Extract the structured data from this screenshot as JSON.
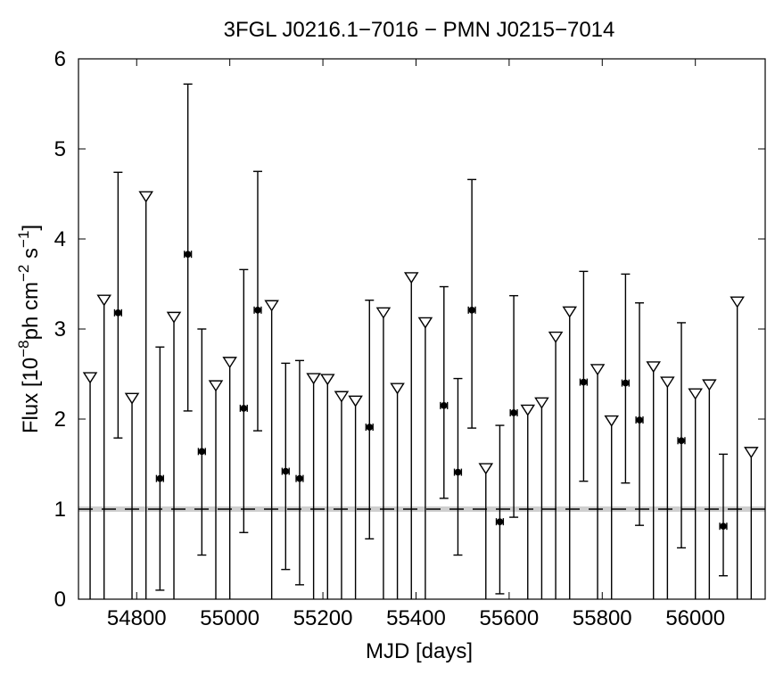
{
  "chart_data": {
    "type": "scatter",
    "title": "3FGL J0216.1−7016 − PMN J0215−7014",
    "xlabel": "MJD [days]",
    "ylabel_parts": {
      "prefix": "Flux [10",
      "exp1": "−8",
      "mid": "ph cm",
      "exp2": "−2",
      "mid2": " s",
      "exp3": "−1",
      "suffix": "]"
    },
    "xlim": [
      54675,
      56150
    ],
    "ylim": [
      0,
      6
    ],
    "xticks": [
      54800,
      55000,
      55200,
      55400,
      55600,
      55800,
      56000
    ],
    "xtick_labels": [
      "54800",
      "55000",
      "55200",
      "55400",
      "55600",
      "55800",
      "56000"
    ],
    "yticks": [
      0,
      1,
      2,
      3,
      4,
      5,
      6
    ],
    "ytick_labels": [
      "0",
      "1",
      "2",
      "3",
      "4",
      "5",
      "6"
    ],
    "grid": false,
    "bin_half_width_days": 15,
    "mean_flux": {
      "value": 1.0,
      "band": [
        0.97,
        1.03
      ]
    },
    "series": [
      {
        "kind": "detections",
        "points": [
          {
            "x": 54760,
            "y": 3.18,
            "ylo": 1.79,
            "yhi": 4.74
          },
          {
            "x": 54850,
            "y": 1.34,
            "ylo": 0.1,
            "yhi": 2.8
          },
          {
            "x": 54910,
            "y": 3.83,
            "ylo": 2.09,
            "yhi": 5.72
          },
          {
            "x": 54940,
            "y": 1.64,
            "ylo": 0.49,
            "yhi": 3.0
          },
          {
            "x": 55030,
            "y": 2.12,
            "ylo": 0.74,
            "yhi": 3.66
          },
          {
            "x": 55060,
            "y": 3.21,
            "ylo": 1.87,
            "yhi": 4.75
          },
          {
            "x": 55120,
            "y": 1.42,
            "ylo": 0.33,
            "yhi": 2.62
          },
          {
            "x": 55150,
            "y": 1.34,
            "ylo": 0.16,
            "yhi": 2.65
          },
          {
            "x": 55300,
            "y": 1.91,
            "ylo": 0.67,
            "yhi": 3.32
          },
          {
            "x": 55460,
            "y": 2.15,
            "ylo": 1.12,
            "yhi": 3.47
          },
          {
            "x": 55490,
            "y": 1.41,
            "ylo": 0.49,
            "yhi": 2.45
          },
          {
            "x": 55520,
            "y": 3.21,
            "ylo": 1.9,
            "yhi": 4.66
          },
          {
            "x": 55580,
            "y": 0.86,
            "ylo": 0.06,
            "yhi": 1.93
          },
          {
            "x": 55610,
            "y": 2.07,
            "ylo": 0.91,
            "yhi": 3.37
          },
          {
            "x": 55760,
            "y": 2.41,
            "ylo": 1.31,
            "yhi": 3.64
          },
          {
            "x": 55850,
            "y": 2.4,
            "ylo": 1.29,
            "yhi": 3.61
          },
          {
            "x": 55880,
            "y": 1.99,
            "ylo": 0.82,
            "yhi": 3.29
          },
          {
            "x": 55970,
            "y": 1.76,
            "ylo": 0.57,
            "yhi": 3.07
          },
          {
            "x": 56060,
            "y": 0.81,
            "ylo": 0.26,
            "yhi": 1.61
          }
        ]
      },
      {
        "kind": "upper_limits",
        "points": [
          {
            "x": 54700,
            "y": 2.46
          },
          {
            "x": 54730,
            "y": 3.32
          },
          {
            "x": 54790,
            "y": 2.23
          },
          {
            "x": 54820,
            "y": 4.47
          },
          {
            "x": 54880,
            "y": 3.13
          },
          {
            "x": 54970,
            "y": 2.37
          },
          {
            "x": 55000,
            "y": 2.63
          },
          {
            "x": 55090,
            "y": 3.26
          },
          {
            "x": 55180,
            "y": 2.45
          },
          {
            "x": 55210,
            "y": 2.44
          },
          {
            "x": 55240,
            "y": 2.25
          },
          {
            "x": 55270,
            "y": 2.2
          },
          {
            "x": 55330,
            "y": 3.18
          },
          {
            "x": 55360,
            "y": 2.34
          },
          {
            "x": 55390,
            "y": 3.57
          },
          {
            "x": 55420,
            "y": 3.07
          },
          {
            "x": 55550,
            "y": 1.45
          },
          {
            "x": 55640,
            "y": 2.1
          },
          {
            "x": 55670,
            "y": 2.18
          },
          {
            "x": 55700,
            "y": 2.91
          },
          {
            "x": 55730,
            "y": 3.19
          },
          {
            "x": 55790,
            "y": 2.55
          },
          {
            "x": 55820,
            "y": 1.98
          },
          {
            "x": 55910,
            "y": 2.58
          },
          {
            "x": 55940,
            "y": 2.41
          },
          {
            "x": 56000,
            "y": 2.28
          },
          {
            "x": 56030,
            "y": 2.38
          },
          {
            "x": 56090,
            "y": 3.3
          },
          {
            "x": 56120,
            "y": 1.63
          }
        ]
      }
    ]
  }
}
